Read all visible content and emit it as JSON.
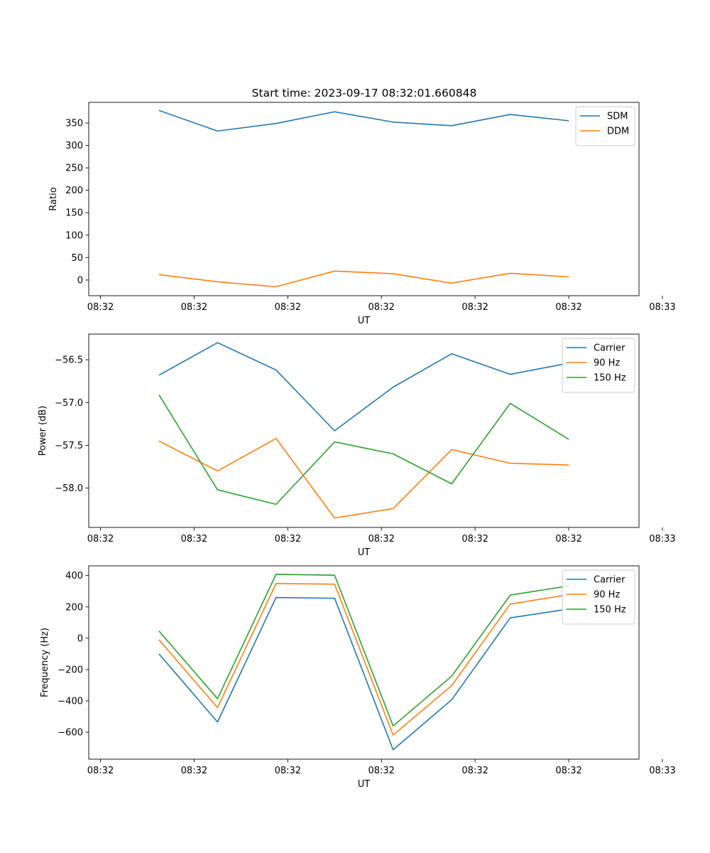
{
  "title": "Start time: 2023-09-17 08:32:01.660848",
  "colors": {
    "blue": "#1f77b4",
    "orange": "#ff7f0e",
    "green": "#2ca02c"
  },
  "chart_data": [
    {
      "type": "line",
      "title": "Start time: 2023-09-17 08:32:01.660848",
      "xlabel": "UT",
      "ylabel": "Ratio",
      "x": [
        0.5,
        1,
        1.5,
        2,
        2.5,
        3,
        3.5,
        4
      ],
      "xlim": [
        -0.1,
        4.6
      ],
      "xticks": [
        0,
        0.8,
        1.6,
        2.4,
        3.2,
        4.0,
        4.8
      ],
      "xtick_labels": [
        "08:32",
        "08:32",
        "08:32",
        "08:32",
        "08:32",
        "08:32",
        "08:33"
      ],
      "ylim": [
        -35,
        396
      ],
      "yticks": [
        0,
        50,
        100,
        150,
        200,
        250,
        300,
        350
      ],
      "ytick_labels": [
        "0",
        "50",
        "100",
        "150",
        "200",
        "250",
        "300",
        "350"
      ],
      "legend": "upper right",
      "series": [
        {
          "name": "SDM",
          "color": "#1f77b4",
          "values": [
            378,
            332,
            349,
            375,
            352,
            344,
            369,
            355
          ]
        },
        {
          "name": "DDM",
          "color": "#ff7f0e",
          "values": [
            12,
            -4,
            -15,
            20,
            14,
            -7,
            15,
            7
          ]
        }
      ]
    },
    {
      "type": "line",
      "title": "",
      "xlabel": "UT",
      "ylabel": "Power (dB)",
      "x": [
        0.5,
        1,
        1.5,
        2,
        2.5,
        3,
        3.5,
        4
      ],
      "xlim": [
        -0.1,
        4.6
      ],
      "xticks": [
        0,
        0.8,
        1.6,
        2.4,
        3.2,
        4.0,
        4.8
      ],
      "xtick_labels": [
        "08:32",
        "08:32",
        "08:32",
        "08:32",
        "08:32",
        "08:32",
        "08:33"
      ],
      "ylim": [
        -58.46,
        -56.2
      ],
      "yticks": [
        -58.0,
        -57.5,
        -57.0,
        -56.5
      ],
      "ytick_labels": [
        "−58.0",
        "−57.5",
        "−57.0",
        "−56.5"
      ],
      "legend": "upper right",
      "series": [
        {
          "name": "Carrier",
          "color": "#1f77b4",
          "values": [
            -56.68,
            -56.3,
            -56.62,
            -57.33,
            -56.82,
            -56.43,
            -56.67,
            -56.54
          ]
        },
        {
          "name": "90 Hz",
          "color": "#ff7f0e",
          "values": [
            -57.45,
            -57.8,
            -57.42,
            -58.35,
            -58.24,
            -57.55,
            -57.71,
            -57.73
          ]
        },
        {
          "name": "150 Hz",
          "color": "#2ca02c",
          "values": [
            -56.91,
            -58.02,
            -58.19,
            -57.46,
            -57.6,
            -57.95,
            -57.01,
            -57.43
          ]
        }
      ]
    },
    {
      "type": "line",
      "title": "",
      "xlabel": "UT",
      "ylabel": "Frequency (Hz)",
      "x": [
        0.5,
        1,
        1.5,
        2,
        2.5,
        3,
        3.5,
        4
      ],
      "xlim": [
        -0.1,
        4.6
      ],
      "xticks": [
        0,
        0.8,
        1.6,
        2.4,
        3.2,
        4.0,
        4.8
      ],
      "xtick_labels": [
        "08:32",
        "08:32",
        "08:32",
        "08:32",
        "08:32",
        "08:32",
        "08:33"
      ],
      "ylim": [
        -772,
        462
      ],
      "yticks": [
        -600,
        -400,
        -200,
        0,
        200,
        400
      ],
      "ytick_labels": [
        "−600",
        "−400",
        "−200",
        "0",
        "200",
        "400"
      ],
      "legend": "upper right",
      "series": [
        {
          "name": "Carrier",
          "color": "#1f77b4",
          "values": [
            -100,
            -535,
            260,
            255,
            -712,
            -393,
            130,
            186
          ]
        },
        {
          "name": "90 Hz",
          "color": "#ff7f0e",
          "values": [
            -10,
            -443,
            349,
            345,
            -618,
            -303,
            218,
            278
          ]
        },
        {
          "name": "150 Hz",
          "color": "#2ca02c",
          "values": [
            46,
            -386,
            408,
            402,
            -560,
            -242,
            275,
            334
          ]
        }
      ]
    }
  ]
}
